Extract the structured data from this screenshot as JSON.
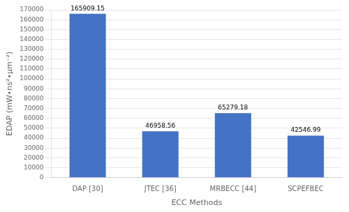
{
  "chart_data": {
    "type": "bar",
    "xlabel": "ECC Methods",
    "ylabel": "EDAP (mW•ns²•μm⁻²)",
    "categories": [
      "DAP [30]",
      "JTEC [36]",
      "MRBECC [44]",
      "SCPEFBEC"
    ],
    "values": [
      165909.15,
      46958.56,
      65279.18,
      42546.99
    ],
    "color": "#4472C4",
    "ylim": [
      0,
      170000
    ],
    "yticks": [
      0,
      10000,
      20000,
      30000,
      40000,
      50000,
      60000,
      70000,
      80000,
      90000,
      100000,
      110000,
      120000,
      130000,
      140000,
      150000,
      160000,
      170000
    ],
    "grid": true,
    "data_labels": true
  }
}
